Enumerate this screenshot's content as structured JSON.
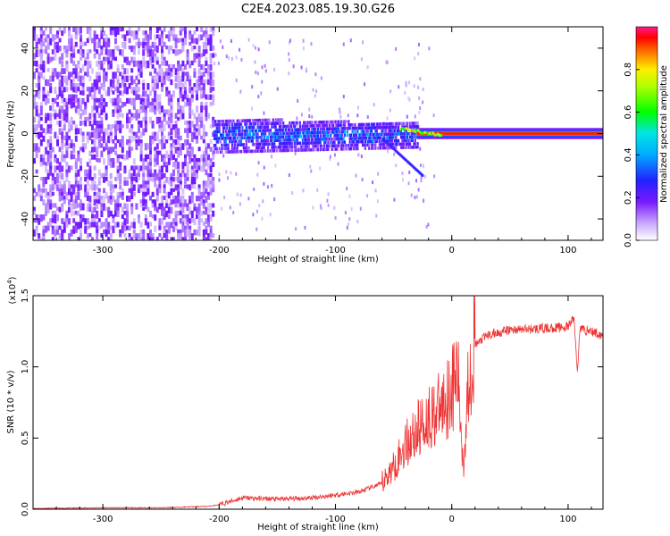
{
  "title": "C2E4.2023.085.19.30.G26",
  "colors": {
    "snr_line": "#ee3333",
    "axes": "#000000"
  },
  "chart_data": [
    {
      "type": "heatmap",
      "xlabel": "Height of straight line (km)",
      "ylabel": "Frequency (Hz)",
      "xlim": [
        -360,
        130
      ],
      "ylim": [
        -50,
        50
      ],
      "x_ticks": [
        -300,
        -200,
        -100,
        0,
        100
      ],
      "y_ticks": [
        -40,
        -20,
        0,
        20,
        40
      ],
      "colorbar": {
        "label": "Normalized spectral amplitude",
        "range": [
          0,
          1
        ],
        "ticks": [
          "0.0",
          "0.2",
          "0.4",
          "0.6",
          "0.8"
        ],
        "colormap": "rainbow (white-violet-blue-cyan-green-yellow-red-magenta)"
      },
      "regions": [
        {
          "x_range": [
            -360,
            -205
          ],
          "freq_range": [
            -50,
            50
          ],
          "amplitude": [
            0.05,
            0.2
          ],
          "pattern": "noise"
        },
        {
          "x_range": [
            -205,
            -30
          ],
          "freq_range": [
            -8,
            8
          ],
          "amplitude": [
            0.1,
            0.45
          ],
          "pattern": "band"
        },
        {
          "x_range": [
            -30,
            130
          ],
          "freq_center": 0,
          "amplitude": [
            0.8,
            1.0
          ],
          "pattern": "narrow line"
        }
      ]
    },
    {
      "type": "line",
      "xlabel": "Height of straight line (km)",
      "ylabel": "SNR (10 * v/v)",
      "y_scale_label": "(x10^4)",
      "xlim": [
        -360,
        130
      ],
      "ylim": [
        0,
        1.5
      ],
      "x_ticks": [
        -300,
        -200,
        -100,
        0,
        100
      ],
      "y_ticks": [
        "0.0",
        "0.5",
        "1.0",
        "1.5"
      ],
      "series": [
        {
          "x": [
            -360,
            -300,
            -250,
            -210,
            -200,
            -180,
            -150,
            -120,
            -100,
            -80,
            -60,
            -50,
            -40,
            -30,
            -20,
            -10,
            0,
            5,
            10,
            15,
            20,
            30,
            50,
            80,
            100,
            105,
            108,
            110,
            120,
            130
          ],
          "y": [
            0.005,
            0.01,
            0.01,
            0.02,
            0.03,
            0.08,
            0.07,
            0.08,
            0.1,
            0.12,
            0.18,
            0.3,
            0.45,
            0.55,
            0.65,
            0.7,
            0.85,
            0.95,
            0.3,
            1.0,
            1.15,
            1.22,
            1.26,
            1.27,
            1.28,
            1.35,
            0.95,
            1.27,
            1.25,
            1.22
          ]
        }
      ]
    }
  ]
}
